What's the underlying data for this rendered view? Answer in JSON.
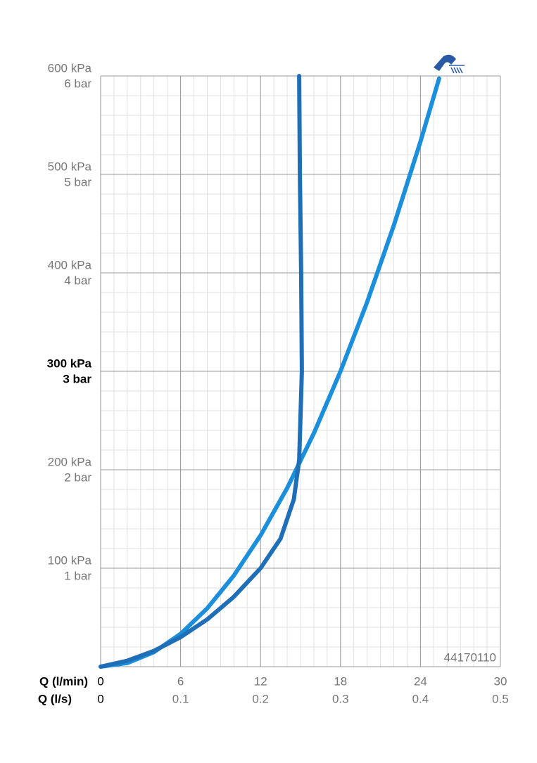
{
  "chart_data": {
    "type": "line",
    "xlabel": "Q (l/min)",
    "x2label": "Q (l/s)",
    "xlim": [
      0,
      30
    ],
    "xticks": [
      0,
      6,
      12,
      18,
      24,
      30
    ],
    "x2lim": [
      0,
      0.5
    ],
    "x2ticks": [
      0,
      0.1,
      0.2,
      0.3,
      0.4,
      0.5
    ],
    "ylim": [
      0,
      600
    ],
    "yticks": [
      {
        "value": 100,
        "label": "100 kPa"
      },
      {
        "value": 200,
        "label": "200 kPa"
      },
      {
        "value": 300,
        "label": "300 kPa"
      },
      {
        "value": 400,
        "label": "400 kPa"
      },
      {
        "value": 500,
        "label": "500 kPa"
      },
      {
        "value": 600,
        "label": "600 kPa"
      }
    ],
    "y2lim": [
      0,
      6
    ],
    "y2ticks": [
      {
        "value": 1,
        "label": "1 bar"
      },
      {
        "value": 2,
        "label": "2 bar"
      },
      {
        "value": 3,
        "label": "3 bar"
      },
      {
        "value": 4,
        "label": "4 bar"
      },
      {
        "value": 5,
        "label": "5 bar"
      },
      {
        "value": 6,
        "label": "6 bar"
      }
    ],
    "bold_ytick": 300,
    "grid": true,
    "xminor": 1,
    "yminor": 20,
    "annotation": "44170110",
    "series": [
      {
        "color": "#1b8fdb",
        "x": [
          0,
          2,
          4,
          6,
          8,
          10,
          12,
          14,
          16,
          18,
          20,
          22,
          24,
          25.4
        ],
        "values": [
          0,
          3.7,
          14.8,
          33.3,
          59.3,
          92.6,
          133.3,
          181.5,
          237,
          300,
          370.4,
          448.1,
          533.3,
          597.4
        ]
      },
      {
        "color": "#1f6fb8",
        "x": [
          0,
          2,
          4,
          6,
          8,
          10,
          12,
          13.5,
          14.5,
          14.9,
          15.1,
          15.05,
          14.95,
          14.9
        ],
        "values": [
          0,
          6,
          16,
          30,
          48,
          71,
          100,
          130,
          170,
          210,
          300,
          400,
          500,
          600
        ]
      }
    ]
  }
}
